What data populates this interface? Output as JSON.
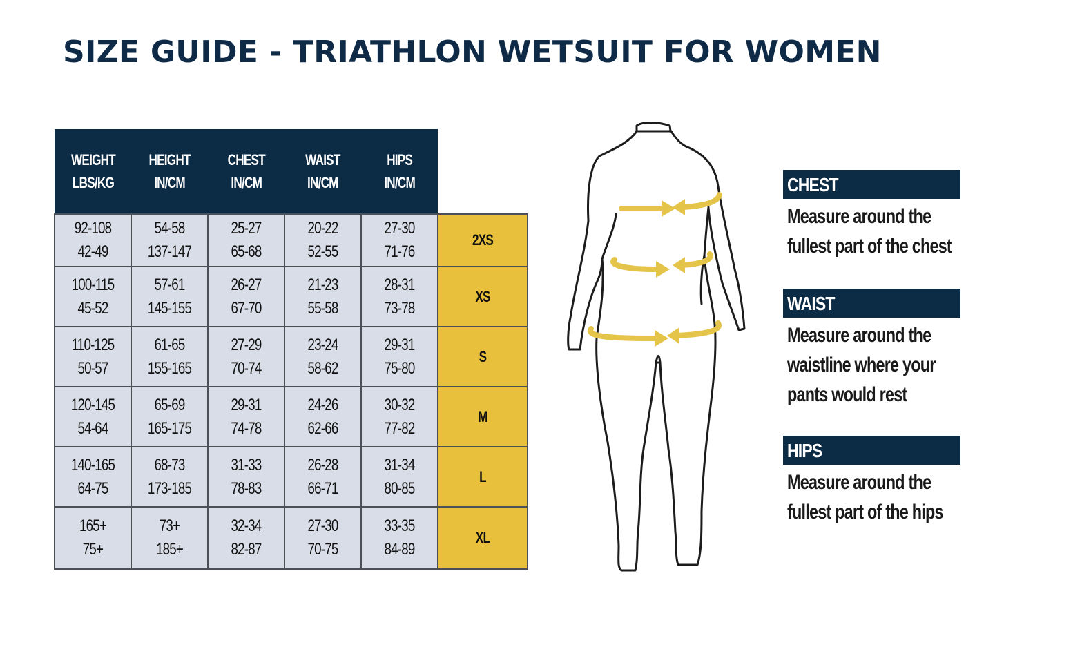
{
  "title": "SIZE GUIDE - TRIATHLON WETSUIT FOR WOMEN",
  "table": {
    "headers": [
      [
        "WEIGHT",
        "LBS/KG"
      ],
      [
        "HEIGHT",
        "IN/CM"
      ],
      [
        "CHEST",
        "IN/CM"
      ],
      [
        "WAIST",
        "IN/CM"
      ],
      [
        "HIPS",
        "IN/CM"
      ]
    ],
    "rows": [
      {
        "cells": [
          [
            "92-108",
            "42-49"
          ],
          [
            "54-58",
            "137-147"
          ],
          [
            "25-27",
            "65-68"
          ],
          [
            "20-22",
            "52-55"
          ],
          [
            "27-30",
            "71-76"
          ]
        ],
        "size": "2XS"
      },
      {
        "cells": [
          [
            "100-115",
            "45-52"
          ],
          [
            "57-61",
            "145-155"
          ],
          [
            "26-27",
            "67-70"
          ],
          [
            "21-23",
            "55-58"
          ],
          [
            "28-31",
            "73-78"
          ]
        ],
        "size": "XS"
      },
      {
        "cells": [
          [
            "110-125",
            "50-57"
          ],
          [
            "61-65",
            "155-165"
          ],
          [
            "27-29",
            "70-74"
          ],
          [
            "23-24",
            "58-62"
          ],
          [
            "29-31",
            "75-80"
          ]
        ],
        "size": "S"
      },
      {
        "cells": [
          [
            "120-145",
            "54-64"
          ],
          [
            "65-69",
            "165-175"
          ],
          [
            "29-31",
            "74-78"
          ],
          [
            "24-26",
            "62-66"
          ],
          [
            "30-32",
            "77-82"
          ]
        ],
        "size": "M"
      },
      {
        "cells": [
          [
            "140-165",
            "64-75"
          ],
          [
            "68-73",
            "173-185"
          ],
          [
            "31-33",
            "78-83"
          ],
          [
            "26-28",
            "66-71"
          ],
          [
            "31-34",
            "80-85"
          ]
        ],
        "size": "L"
      },
      {
        "cells": [
          [
            "165+",
            "75+"
          ],
          [
            "73+",
            "185+"
          ],
          [
            "32-34",
            "82-87"
          ],
          [
            "27-30",
            "70-75"
          ],
          [
            "33-35",
            "84-89"
          ]
        ],
        "size": "XL"
      }
    ]
  },
  "legend": [
    {
      "label": "CHEST",
      "lines": [
        "Measure around the",
        "fullest part of the chest"
      ]
    },
    {
      "label": "WAIST",
      "lines": [
        "Measure around the",
        "waistline where your",
        "pants would rest"
      ]
    },
    {
      "label": "HIPS",
      "lines": [
        "Measure around the",
        "fullest part of the hips"
      ]
    }
  ],
  "colors": {
    "navy": "#0c2b45",
    "gold": "#e8c03c",
    "cell": "#d9dde8",
    "arrow": "#e5c44a"
  }
}
